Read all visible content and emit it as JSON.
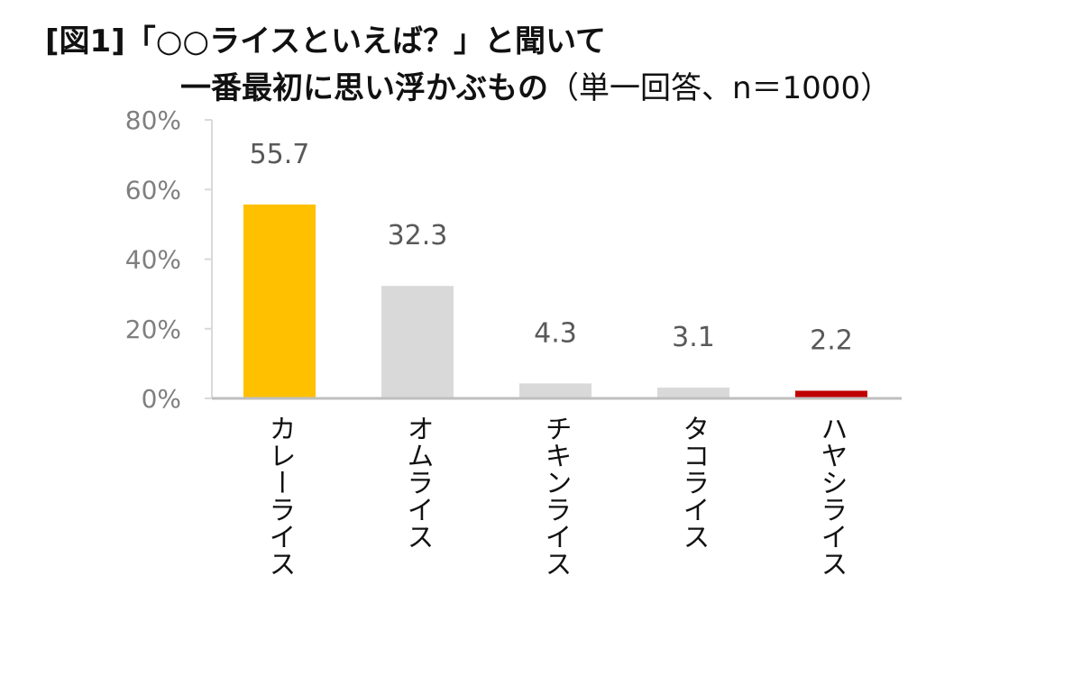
{
  "title": {
    "line1": "[図1]「○○ライスといえば？」と聞いて",
    "line2_main": "一番最初に思い浮かぶもの",
    "line2_sub": "（単一回答、n＝1000）"
  },
  "chart_data": {
    "type": "bar",
    "categories": [
      "カレーライス",
      "オムライス",
      "チキンライス",
      "タコライス",
      "ハヤシライス"
    ],
    "values": [
      55.7,
      32.3,
      4.3,
      3.1,
      2.2
    ],
    "value_labels": [
      "55.7",
      "32.3",
      "4.3",
      "3.1",
      "2.2"
    ],
    "yticks": [
      0,
      20,
      40,
      60,
      80
    ],
    "ytick_labels": [
      "0%",
      "20%",
      "40%",
      "60%",
      "80%"
    ],
    "ylim": [
      0,
      80
    ],
    "bar_colors": [
      "#FFC000",
      "#D9D9D9",
      "#D9D9D9",
      "#D9D9D9",
      "#D9D9D9"
    ],
    "highlight_line_color": "#C00000",
    "grid": false,
    "category_label_orientation": "vertical"
  }
}
